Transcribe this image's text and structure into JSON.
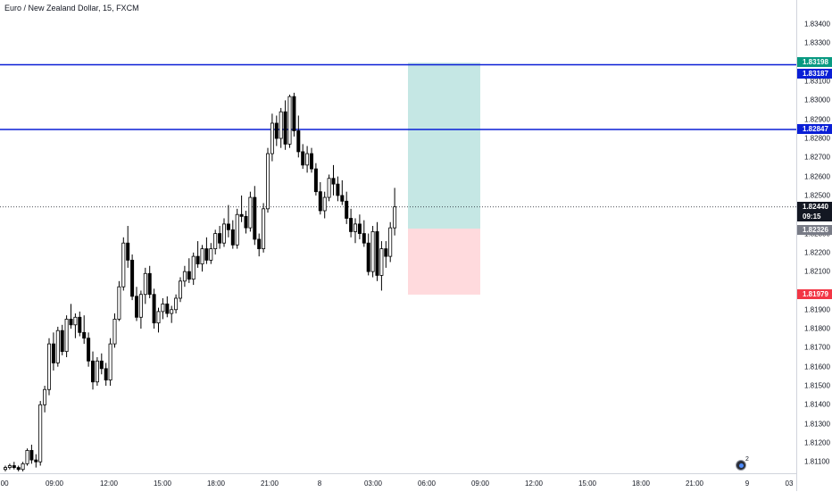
{
  "header": {
    "symbol_title": "Euro / New Zealand Dollar, 15, FXCM"
  },
  "colors": {
    "candle_up_fill": "#ffffff",
    "candle_down_fill": "#000000",
    "candle_border": "#000000",
    "horizontal_line": "#0a1fd6",
    "profit_zone": "#b2dfdb",
    "loss_zone": "#ffcdd2",
    "target_badge": "#089981",
    "stop_badge": "#f23645",
    "line_badge": "#0a1fd6",
    "current_price_badge": "#131722",
    "entry_badge": "#787b86"
  },
  "chart_data": {
    "type": "candlestick",
    "title": "Euro / New Zealand Dollar, 15, FXCM",
    "ylim": [
      1.8104,
      1.8349
    ],
    "y_ticks": [
      "1.83400",
      "1.83300",
      "1.83100",
      "1.83000",
      "1.82900",
      "1.82800",
      "1.82700",
      "1.82600",
      "1.82500",
      "1.82300",
      "1.82200",
      "1.82100",
      "1.81900",
      "1.81800",
      "1.81700",
      "1.81600",
      "1.81500",
      "1.81400",
      "1.81300",
      "1.81200",
      "1.81100"
    ],
    "x_ticks": [
      ":00",
      "09:00",
      "12:00",
      "15:00",
      "18:00",
      "21:00",
      "8",
      "03:00",
      "06:00",
      "09:00",
      "12:00",
      "15:00",
      "18:00",
      "21:00",
      "9",
      "03"
    ],
    "candles": [
      [
        1.8106,
        1.8108,
        1.8105,
        1.8107
      ],
      [
        1.8107,
        1.8109,
        1.8106,
        1.8108
      ],
      [
        1.8108,
        1.811,
        1.8106,
        1.8107
      ],
      [
        1.8107,
        1.8108,
        1.8105,
        1.8106
      ],
      [
        1.8106,
        1.811,
        1.8105,
        1.8109
      ],
      [
        1.8109,
        1.8117,
        1.8108,
        1.8116
      ],
      [
        1.8116,
        1.8119,
        1.8109,
        1.8111
      ],
      [
        1.8111,
        1.8114,
        1.8107,
        1.811
      ],
      [
        1.811,
        1.8142,
        1.8108,
        1.814
      ],
      [
        1.814,
        1.815,
        1.8136,
        1.8148
      ],
      [
        1.8148,
        1.8175,
        1.8145,
        1.8172
      ],
      [
        1.8172,
        1.8178,
        1.8158,
        1.8162
      ],
      [
        1.8162,
        1.8181,
        1.816,
        1.8179
      ],
      [
        1.8179,
        1.8182,
        1.8166,
        1.8168
      ],
      [
        1.8168,
        1.8187,
        1.8165,
        1.8185
      ],
      [
        1.8185,
        1.8193,
        1.818,
        1.8182
      ],
      [
        1.8182,
        1.8188,
        1.8175,
        1.8186
      ],
      [
        1.8186,
        1.8189,
        1.8176,
        1.8178
      ],
      [
        1.8178,
        1.8187,
        1.8172,
        1.8175
      ],
      [
        1.8175,
        1.8178,
        1.816,
        1.8163
      ],
      [
        1.8163,
        1.8168,
        1.8148,
        1.8152
      ],
      [
        1.8152,
        1.8165,
        1.815,
        1.8163
      ],
      [
        1.8163,
        1.8167,
        1.8156,
        1.8159
      ],
      [
        1.8159,
        1.8162,
        1.815,
        1.8153
      ],
      [
        1.8153,
        1.8175,
        1.815,
        1.8172
      ],
      [
        1.8172,
        1.8188,
        1.817,
        1.8185
      ],
      [
        1.8185,
        1.8205,
        1.8184,
        1.8202
      ],
      [
        1.8202,
        1.8228,
        1.82,
        1.8225
      ],
      [
        1.8225,
        1.8234,
        1.8212,
        1.8216
      ],
      [
        1.8216,
        1.8219,
        1.8195,
        1.8197
      ],
      [
        1.8197,
        1.8202,
        1.8184,
        1.8186
      ],
      [
        1.8186,
        1.82,
        1.818,
        1.8198
      ],
      [
        1.8198,
        1.8212,
        1.8193,
        1.8209
      ],
      [
        1.8209,
        1.8213,
        1.8196,
        1.8198
      ],
      [
        1.8198,
        1.8201,
        1.818,
        1.8183
      ],
      [
        1.8183,
        1.8191,
        1.8178,
        1.8189
      ],
      [
        1.8189,
        1.8196,
        1.8185,
        1.8193
      ],
      [
        1.8193,
        1.8197,
        1.8186,
        1.8188
      ],
      [
        1.8188,
        1.8192,
        1.8183,
        1.819
      ],
      [
        1.819,
        1.8198,
        1.8188,
        1.8196
      ],
      [
        1.8196,
        1.8207,
        1.8194,
        1.8205
      ],
      [
        1.8205,
        1.8213,
        1.8202,
        1.821
      ],
      [
        1.821,
        1.8217,
        1.8204,
        1.8206
      ],
      [
        1.8206,
        1.822,
        1.8203,
        1.8218
      ],
      [
        1.8218,
        1.8226,
        1.8212,
        1.8214
      ],
      [
        1.8214,
        1.8224,
        1.821,
        1.8222
      ],
      [
        1.8222,
        1.8228,
        1.8214,
        1.8216
      ],
      [
        1.8216,
        1.8225,
        1.8214,
        1.8222
      ],
      [
        1.8222,
        1.8232,
        1.8219,
        1.823
      ],
      [
        1.823,
        1.8234,
        1.8222,
        1.8225
      ],
      [
        1.8225,
        1.8238,
        1.8223,
        1.8235
      ],
      [
        1.8235,
        1.8245,
        1.8228,
        1.8232
      ],
      [
        1.8232,
        1.8237,
        1.8222,
        1.8224
      ],
      [
        1.8224,
        1.8243,
        1.8222,
        1.824
      ],
      [
        1.824,
        1.825,
        1.8236,
        1.8239
      ],
      [
        1.8239,
        1.8242,
        1.823,
        1.8233
      ],
      [
        1.8233,
        1.8252,
        1.8231,
        1.8249
      ],
      [
        1.8249,
        1.8255,
        1.8224,
        1.8227
      ],
      [
        1.8227,
        1.823,
        1.8218,
        1.8222
      ],
      [
        1.8222,
        1.8246,
        1.822,
        1.8243
      ],
      [
        1.8243,
        1.8275,
        1.8241,
        1.8272
      ],
      [
        1.8272,
        1.8293,
        1.8268,
        1.8288
      ],
      [
        1.8288,
        1.8292,
        1.8276,
        1.828
      ],
      [
        1.828,
        1.8296,
        1.8275,
        1.8294
      ],
      [
        1.8294,
        1.83,
        1.8274,
        1.8277
      ],
      [
        1.8277,
        1.8303,
        1.8275,
        1.8302
      ],
      [
        1.8302,
        1.8304,
        1.8281,
        1.8284
      ],
      [
        1.8284,
        1.8292,
        1.827,
        1.8273
      ],
      [
        1.8273,
        1.8277,
        1.8264,
        1.8266
      ],
      [
        1.8266,
        1.8276,
        1.8262,
        1.8272
      ],
      [
        1.8272,
        1.8275,
        1.8262,
        1.8264
      ],
      [
        1.8264,
        1.8267,
        1.825,
        1.8252
      ],
      [
        1.8252,
        1.8257,
        1.824,
        1.8242
      ],
      [
        1.8242,
        1.8252,
        1.8238,
        1.8249
      ],
      [
        1.8249,
        1.8261,
        1.8247,
        1.8259
      ],
      [
        1.8259,
        1.8266,
        1.825,
        1.8256
      ],
      [
        1.8256,
        1.826,
        1.8247,
        1.825
      ],
      [
        1.825,
        1.8258,
        1.8245,
        1.8247
      ],
      [
        1.8247,
        1.8252,
        1.8235,
        1.8238
      ],
      [
        1.8238,
        1.8243,
        1.8228,
        1.8231
      ],
      [
        1.8231,
        1.8238,
        1.8225,
        1.8235
      ],
      [
        1.8235,
        1.824,
        1.8227,
        1.823
      ],
      [
        1.823,
        1.8237,
        1.8223,
        1.8225
      ],
      [
        1.8225,
        1.823,
        1.8208,
        1.821
      ],
      [
        1.821,
        1.8234,
        1.8207,
        1.8231
      ],
      [
        1.8231,
        1.8236,
        1.8205,
        1.8208
      ],
      [
        1.8208,
        1.8226,
        1.82,
        1.8222
      ],
      [
        1.8222,
        1.8226,
        1.8212,
        1.8218
      ],
      [
        1.8218,
        1.8236,
        1.8215,
        1.8233
      ],
      [
        1.8233,
        1.8254,
        1.8229,
        1.8244
      ]
    ]
  },
  "price_axis": {
    "badges": {
      "target": "1.83198",
      "upper_line": "1.83187",
      "lower_line": "1.82847",
      "current": "1.82440",
      "countdown": "09:15",
      "entry": "1.82326",
      "stop": "1.81979"
    }
  },
  "drawings": {
    "horizontal_lines": [
      1.83187,
      1.82847
    ],
    "current_price": 1.8244,
    "position": {
      "entry": 1.82326,
      "target": 1.83198,
      "stop": 1.81979
    }
  },
  "footer": {
    "flag_count": "2"
  }
}
